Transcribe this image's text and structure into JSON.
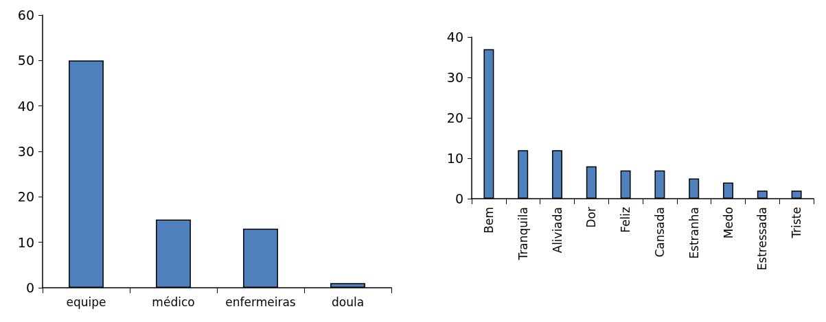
{
  "chart_data": [
    {
      "type": "bar",
      "categories": [
        "equipe",
        "médico",
        "enfermeiras",
        "doula"
      ],
      "values": [
        50,
        15,
        13,
        1
      ],
      "color": "#4f81bd",
      "ylim": [
        0,
        60
      ],
      "yticks": [
        0,
        10,
        20,
        30,
        40,
        50,
        60
      ]
    },
    {
      "type": "bar",
      "categories": [
        "Bem",
        "Tranquila",
        "Aliviada",
        "Dor",
        "Feliz",
        "Cansada",
        "Estranha",
        "Medo",
        "Estressada",
        "Triste"
      ],
      "values": [
        37,
        12,
        12,
        8,
        7,
        7,
        5,
        4,
        2,
        2
      ],
      "color": "#4f81bd",
      "ylim": [
        0,
        40
      ],
      "yticks": [
        0,
        10,
        20,
        30,
        40
      ]
    }
  ]
}
